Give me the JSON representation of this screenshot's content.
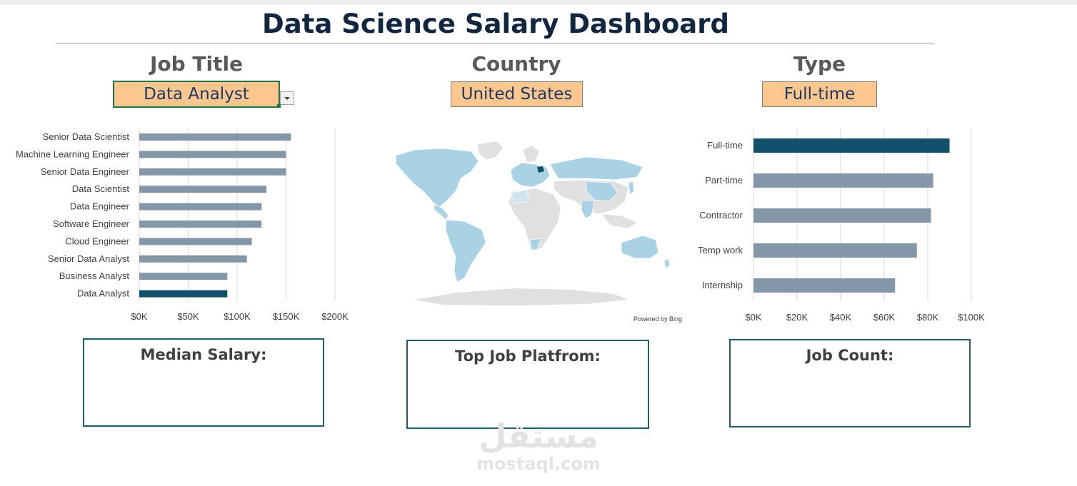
{
  "title": "Data Science Salary Dashboard",
  "filters": {
    "job_title": {
      "label": "Job Title",
      "value": "Data Analyst"
    },
    "country": {
      "label": "Country",
      "value": "United States"
    },
    "type": {
      "label": "Type",
      "value": "Full-time"
    }
  },
  "map": {
    "attribution": "Powered by Bing",
    "highlight_color": "#a9d2e5",
    "base_color": "#e0e0e0"
  },
  "kpis": {
    "median_salary": "Median Salary:",
    "top_platform": "Top Job Platfrom:",
    "job_count": "Job Count:"
  },
  "watermark": {
    "arabic": "مستقل",
    "latin": "mostaql.com"
  },
  "colors": {
    "bar": "#8497a9",
    "highlight": "#12506b",
    "accent": "#fcc68f",
    "kpi_border": "#1f5d6b"
  },
  "chart_data": [
    {
      "type": "bar",
      "orientation": "horizontal",
      "categories": [
        "Senior Data Scientist",
        "Machine Learning Engineer",
        "Senior Data Engineer",
        "Data Scientist",
        "Data Engineer",
        "Software Engineer",
        "Cloud Engineer",
        "Senior Data Analyst",
        "Business Analyst",
        "Data Analyst"
      ],
      "values": [
        155000,
        150000,
        150000,
        130000,
        125000,
        125000,
        115000,
        110000,
        90000,
        90000
      ],
      "highlight": "Data Analyst",
      "xlim": [
        0,
        200000
      ],
      "xticks": [
        0,
        50000,
        100000,
        150000,
        200000
      ],
      "xtick_labels": [
        "$0K",
        "$50K",
        "$100K",
        "$150K",
        "$200K"
      ],
      "grid": true
    },
    {
      "type": "bar",
      "orientation": "horizontal",
      "categories": [
        "Full-time",
        "Part-time",
        "Contractor",
        "Temp work",
        "Internship"
      ],
      "values": [
        90000,
        82500,
        81500,
        75000,
        65000
      ],
      "highlight": "Full-time",
      "xlim": [
        0,
        100000
      ],
      "xticks": [
        0,
        20000,
        40000,
        60000,
        80000,
        100000
      ],
      "xtick_labels": [
        "$0K",
        "$20K",
        "$40K",
        "$60K",
        "$80K",
        "$100K"
      ],
      "grid": true
    }
  ]
}
